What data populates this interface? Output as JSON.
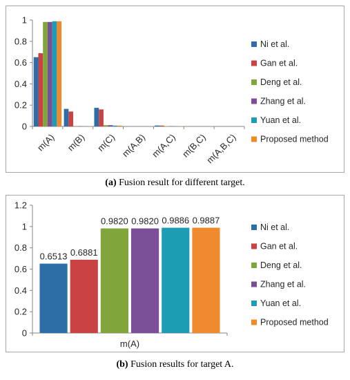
{
  "colors": {
    "axis": "#868686",
    "series": [
      "#2E6EA8",
      "#C94343",
      "#7FA53B",
      "#7A4F97",
      "#1D9DB3",
      "#F08A2F"
    ]
  },
  "chart_data": [
    {
      "type": "bar",
      "categories": [
        "m(A)",
        "m(B)",
        "m(C)",
        "m(A,B)",
        "m(A,C)",
        "m(B,C)",
        "m(A,B,C)"
      ],
      "ylim": [
        0,
        1
      ],
      "yticks": [
        "0",
        "0.2",
        "0.4",
        "0.6",
        "0.8",
        "1"
      ],
      "legend_position": "right",
      "grid": false,
      "series": [
        {
          "name": "Ni et al.",
          "values": [
            0.6513,
            0.165,
            0.175,
            0.0,
            0.0087,
            0.0,
            0.0
          ]
        },
        {
          "name": "Gan et al.",
          "values": [
            0.6881,
            0.14,
            0.16,
            0.0,
            0.008,
            0.0,
            0.0
          ]
        },
        {
          "name": "Deng et al.",
          "values": [
            0.982,
            0.003,
            0.012,
            0.0,
            0.003,
            0.0,
            0.0
          ]
        },
        {
          "name": "Zhang et al.",
          "values": [
            0.982,
            0.003,
            0.012,
            0.0,
            0.003,
            0.0,
            0.0
          ]
        },
        {
          "name": "Yuan et al.",
          "values": [
            0.9886,
            0.001,
            0.008,
            0.0,
            0.002,
            0.0,
            0.0
          ]
        },
        {
          "name": "Proposed method",
          "values": [
            0.9887,
            0.001,
            0.008,
            0.0,
            0.002,
            0.0,
            0.0
          ]
        }
      ],
      "caption_label": "(a)",
      "caption_text": "Fusion result for different target."
    },
    {
      "type": "bar",
      "categories": [
        "m(A)"
      ],
      "ylim": [
        0,
        1.2
      ],
      "yticks": [
        "0",
        "0.2",
        "0.4",
        "0.6",
        "0.8",
        "1",
        "1.2"
      ],
      "legend_position": "right",
      "grid": false,
      "series": [
        {
          "name": "Ni et al.",
          "values": [
            0.6513
          ],
          "label": "0.6513"
        },
        {
          "name": "Gan et al.",
          "values": [
            0.6881
          ],
          "label": "0.6881"
        },
        {
          "name": "Deng et al.",
          "values": [
            0.982
          ],
          "label": "0.9820"
        },
        {
          "name": "Zhang et al.",
          "values": [
            0.982
          ],
          "label": "0.9820"
        },
        {
          "name": "Yuan et al.",
          "values": [
            0.9886
          ],
          "label": "0.9886"
        },
        {
          "name": "Proposed method",
          "values": [
            0.9887
          ],
          "label": "0.9887"
        }
      ],
      "caption_label": "(b)",
      "caption_text": "Fusion results for target A."
    }
  ]
}
